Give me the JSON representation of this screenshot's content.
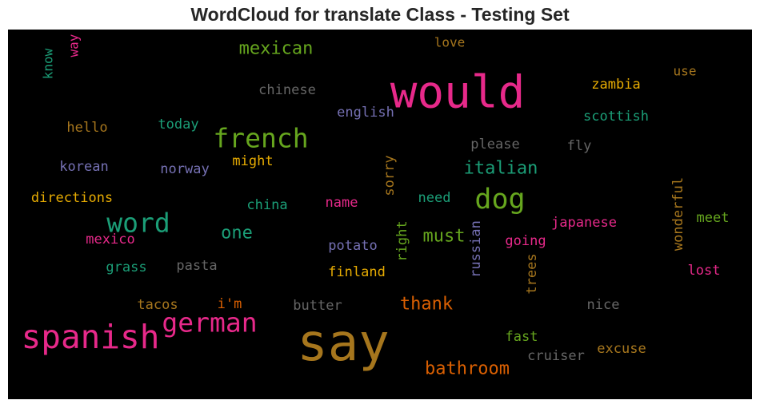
{
  "chart_data": {
    "type": "wordcloud",
    "title": "WordCloud for translate Class - Testing Set",
    "background": "#000000",
    "words": [
      {
        "text": "know",
        "color": "#1b9e77"
      },
      {
        "text": "way",
        "color": "#e7298a"
      },
      {
        "text": "mexican",
        "color": "#66a61e"
      },
      {
        "text": "love",
        "color": "#a6761d"
      },
      {
        "text": "would",
        "color": "#e7298a"
      },
      {
        "text": "use",
        "color": "#a6761d"
      },
      {
        "text": "chinese",
        "color": "#666666"
      },
      {
        "text": "zambia",
        "color": "#e6ab02"
      },
      {
        "text": "english",
        "color": "#7570b3"
      },
      {
        "text": "scottish",
        "color": "#1b9e77"
      },
      {
        "text": "hello",
        "color": "#a6761d"
      },
      {
        "text": "today",
        "color": "#1b9e77"
      },
      {
        "text": "french",
        "color": "#66a61e"
      },
      {
        "text": "please",
        "color": "#666666"
      },
      {
        "text": "fly",
        "color": "#666666"
      },
      {
        "text": "korean",
        "color": "#7570b3"
      },
      {
        "text": "norway",
        "color": "#7570b3"
      },
      {
        "text": "might",
        "color": "#e6ab02"
      },
      {
        "text": "italian",
        "color": "#1b9e77"
      },
      {
        "text": "sorry",
        "color": "#a6761d"
      },
      {
        "text": "directions",
        "color": "#e6ab02"
      },
      {
        "text": "china",
        "color": "#1b9e77"
      },
      {
        "text": "name",
        "color": "#e7298a"
      },
      {
        "text": "need",
        "color": "#1b9e77"
      },
      {
        "text": "dog",
        "color": "#66a61e"
      },
      {
        "text": "wonderful",
        "color": "#a6761d"
      },
      {
        "text": "word",
        "color": "#1b9e77"
      },
      {
        "text": "one",
        "color": "#1b9e77"
      },
      {
        "text": "japanese",
        "color": "#e7298a"
      },
      {
        "text": "meet",
        "color": "#66a61e"
      },
      {
        "text": "mexico",
        "color": "#e7298a"
      },
      {
        "text": "right",
        "color": "#66a61e"
      },
      {
        "text": "must",
        "color": "#66a61e"
      },
      {
        "text": "russian",
        "color": "#7570b3"
      },
      {
        "text": "going",
        "color": "#e7298a"
      },
      {
        "text": "potato",
        "color": "#7570b3"
      },
      {
        "text": "trees",
        "color": "#a6761d"
      },
      {
        "text": "grass",
        "color": "#1b9e77"
      },
      {
        "text": "pasta",
        "color": "#666666"
      },
      {
        "text": "finland",
        "color": "#e6ab02"
      },
      {
        "text": "lost",
        "color": "#e7298a"
      },
      {
        "text": "tacos",
        "color": "#a6761d"
      },
      {
        "text": "i'm",
        "color": "#d95f02"
      },
      {
        "text": "butter",
        "color": "#666666"
      },
      {
        "text": "thank",
        "color": "#d95f02"
      },
      {
        "text": "nice",
        "color": "#666666"
      },
      {
        "text": "spanish",
        "color": "#e7298a"
      },
      {
        "text": "german",
        "color": "#e7298a"
      },
      {
        "text": "say",
        "color": "#a6761d"
      },
      {
        "text": "fast",
        "color": "#66a61e"
      },
      {
        "text": "excuse",
        "color": "#a6761d"
      },
      {
        "text": "cruiser",
        "color": "#666666"
      },
      {
        "text": "bathroom",
        "color": "#d95f02"
      }
    ]
  }
}
